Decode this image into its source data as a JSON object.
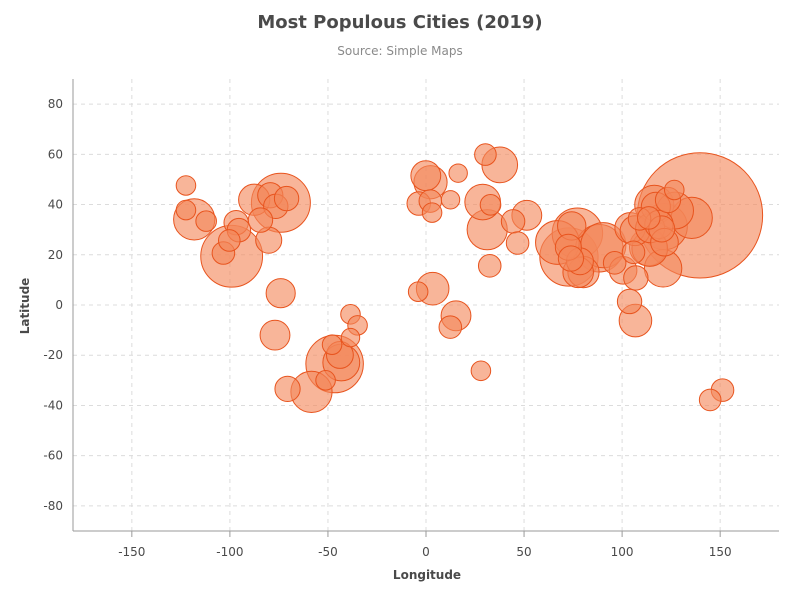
{
  "chart_data": {
    "type": "scatter",
    "title": "Most Populous Cities (2019)",
    "subtitle": "Source: Simple Maps",
    "xlabel": "Longitude",
    "ylabel": "Latitude",
    "xlim": [
      -180,
      180
    ],
    "ylim": [
      -90,
      90
    ],
    "xticks": [
      -150,
      -100,
      -50,
      0,
      50,
      100,
      150
    ],
    "yticks": [
      -80,
      -60,
      -40,
      -20,
      0,
      20,
      40,
      60,
      80
    ],
    "grid": true,
    "legend": "none",
    "colors": {
      "fill": "#f4875a",
      "stroke": "#e8541e"
    },
    "points": [
      {
        "x": 139.7,
        "y": 35.7,
        "size": 37.0
      },
      {
        "x": -99.1,
        "y": 19.4,
        "size": 9.0
      },
      {
        "x": -74.0,
        "y": 40.7,
        "size": 8.2
      },
      {
        "x": 72.9,
        "y": 19.1,
        "size": 8.0
      },
      {
        "x": -46.6,
        "y": -23.5,
        "size": 7.8
      },
      {
        "x": 77.2,
        "y": 28.6,
        "size": 6.0
      },
      {
        "x": 88.4,
        "y": 22.6,
        "size": 5.3
      },
      {
        "x": 121.5,
        "y": 31.2,
        "size": 5.0
      },
      {
        "x": 90.4,
        "y": 23.8,
        "size": 4.8
      },
      {
        "x": 67.0,
        "y": 24.9,
        "size": 4.5
      },
      {
        "x": -58.4,
        "y": -34.6,
        "size": 4.0
      },
      {
        "x": -118.2,
        "y": 34.1,
        "size": 4.0
      },
      {
        "x": 135.5,
        "y": 34.7,
        "size": 4.0
      },
      {
        "x": 31.2,
        "y": 30.0,
        "size": 3.8
      },
      {
        "x": 116.4,
        "y": 39.9,
        "size": 3.6
      },
      {
        "x": 113.3,
        "y": 23.1,
        "size": 3.3
      },
      {
        "x": 114.1,
        "y": 22.5,
        "size": 3.0
      },
      {
        "x": 120.9,
        "y": 14.6,
        "size": 3.3
      },
      {
        "x": 127.0,
        "y": 37.6,
        "size": 3.2
      },
      {
        "x": 28.9,
        "y": 41.0,
        "size": 3.0
      },
      {
        "x": 37.6,
        "y": 55.8,
        "size": 3.0
      },
      {
        "x": -43.2,
        "y": -22.9,
        "size": 3.2
      },
      {
        "x": 106.8,
        "y": -6.2,
        "size": 2.5
      },
      {
        "x": 2.3,
        "y": 48.9,
        "size": 2.6
      },
      {
        "x": 3.4,
        "y": 6.5,
        "size": 2.5
      },
      {
        "x": 80.3,
        "y": 13.1,
        "size": 2.3
      },
      {
        "x": 77.6,
        "y": 13.0,
        "size": 2.2
      },
      {
        "x": -0.1,
        "y": 51.5,
        "size": 2.1
      },
      {
        "x": -87.6,
        "y": 41.9,
        "size": 2.3
      },
      {
        "x": 104.1,
        "y": 30.7,
        "size": 2.2
      },
      {
        "x": 106.6,
        "y": 29.6,
        "size": 2.1
      },
      {
        "x": 114.3,
        "y": 30.6,
        "size": 2.0
      },
      {
        "x": 118.8,
        "y": 32.1,
        "size": 1.9
      },
      {
        "x": 117.2,
        "y": 39.1,
        "size": 2.0
      },
      {
        "x": 51.4,
        "y": 35.7,
        "size": 2.1
      },
      {
        "x": 15.3,
        "y": -4.3,
        "size": 2.1
      },
      {
        "x": -77.0,
        "y": -12.0,
        "size": 2.1
      },
      {
        "x": -74.1,
        "y": 4.7,
        "size": 2.0
      },
      {
        "x": 100.5,
        "y": 13.8,
        "size": 1.8
      },
      {
        "x": 74.3,
        "y": 31.5,
        "size": 1.9
      },
      {
        "x": 121.6,
        "y": 25.0,
        "size": 1.8
      },
      {
        "x": -43.9,
        "y": -19.9,
        "size": 1.7
      },
      {
        "x": 78.5,
        "y": 17.4,
        "size": 1.7
      },
      {
        "x": -79.4,
        "y": 43.7,
        "size": 1.5
      },
      {
        "x": 72.6,
        "y": 23.0,
        "size": 1.6
      },
      {
        "x": 120.2,
        "y": 30.3,
        "size": 1.6
      },
      {
        "x": -80.2,
        "y": 25.8,
        "size": 1.6
      },
      {
        "x": 73.9,
        "y": 18.5,
        "size": 1.5
      },
      {
        "x": 123.4,
        "y": 41.8,
        "size": 1.5
      },
      {
        "x": -70.6,
        "y": -33.4,
        "size": 1.5
      },
      {
        "x": -76.6,
        "y": 39.3,
        "size": 1.4
      },
      {
        "x": -71.1,
        "y": 42.4,
        "size": 1.4
      },
      {
        "x": -84.4,
        "y": 33.8,
        "size": 1.4
      },
      {
        "x": -96.8,
        "y": 32.8,
        "size": 1.4
      },
      {
        "x": -95.4,
        "y": 29.8,
        "size": 1.3
      },
      {
        "x": -3.7,
        "y": 40.4,
        "size": 1.3
      },
      {
        "x": 2.2,
        "y": 41.4,
        "size": 1.2
      },
      {
        "x": 44.4,
        "y": 33.3,
        "size": 1.3
      },
      {
        "x": 103.8,
        "y": 1.4,
        "size": 1.4
      },
      {
        "x": 96.2,
        "y": 16.8,
        "size": 1.2
      },
      {
        "x": 105.8,
        "y": 21.0,
        "size": 1.2
      },
      {
        "x": 107.0,
        "y": 10.8,
        "size": 1.4
      },
      {
        "x": 46.7,
        "y": 24.7,
        "size": 1.2
      },
      {
        "x": 32.5,
        "y": 15.6,
        "size": 1.2
      },
      {
        "x": 108.9,
        "y": 34.3,
        "size": 1.2
      },
      {
        "x": 113.6,
        "y": 34.7,
        "size": 1.2
      },
      {
        "x": -100.3,
        "y": 25.7,
        "size": 1.1
      },
      {
        "x": -103.3,
        "y": 20.7,
        "size": 1.2
      },
      {
        "x": 151.2,
        "y": -33.9,
        "size": 1.2
      },
      {
        "x": 144.9,
        "y": -37.8,
        "size": 1.1
      },
      {
        "x": 30.3,
        "y": 59.9,
        "size": 1.1
      },
      {
        "x": 126.6,
        "y": 45.8,
        "size": 0.9
      },
      {
        "x": -122.4,
        "y": 47.6,
        "size": 0.9
      },
      {
        "x": -122.4,
        "y": 37.8,
        "size": 0.9
      },
      {
        "x": -112.1,
        "y": 33.4,
        "size": 1.0
      },
      {
        "x": -4.0,
        "y": 5.3,
        "size": 0.9
      },
      {
        "x": 12.5,
        "y": 41.9,
        "size": 0.8
      },
      {
        "x": 16.4,
        "y": 52.5,
        "size": 0.8
      },
      {
        "x": 32.9,
        "y": 39.9,
        "size": 1.0
      },
      {
        "x": 3.1,
        "y": 36.8,
        "size": 0.9
      },
      {
        "x": 28.0,
        "y": -26.2,
        "size": 0.9
      },
      {
        "x": 12.4,
        "y": -8.8,
        "size": 1.2
      },
      {
        "x": -38.5,
        "y": -3.7,
        "size": 0.9
      },
      {
        "x": -34.9,
        "y": -8.1,
        "size": 0.9
      },
      {
        "x": -38.5,
        "y": -13.0,
        "size": 0.8
      },
      {
        "x": -47.9,
        "y": -15.8,
        "size": 0.9
      },
      {
        "x": -51.2,
        "y": -30.0,
        "size": 0.9
      }
    ]
  }
}
